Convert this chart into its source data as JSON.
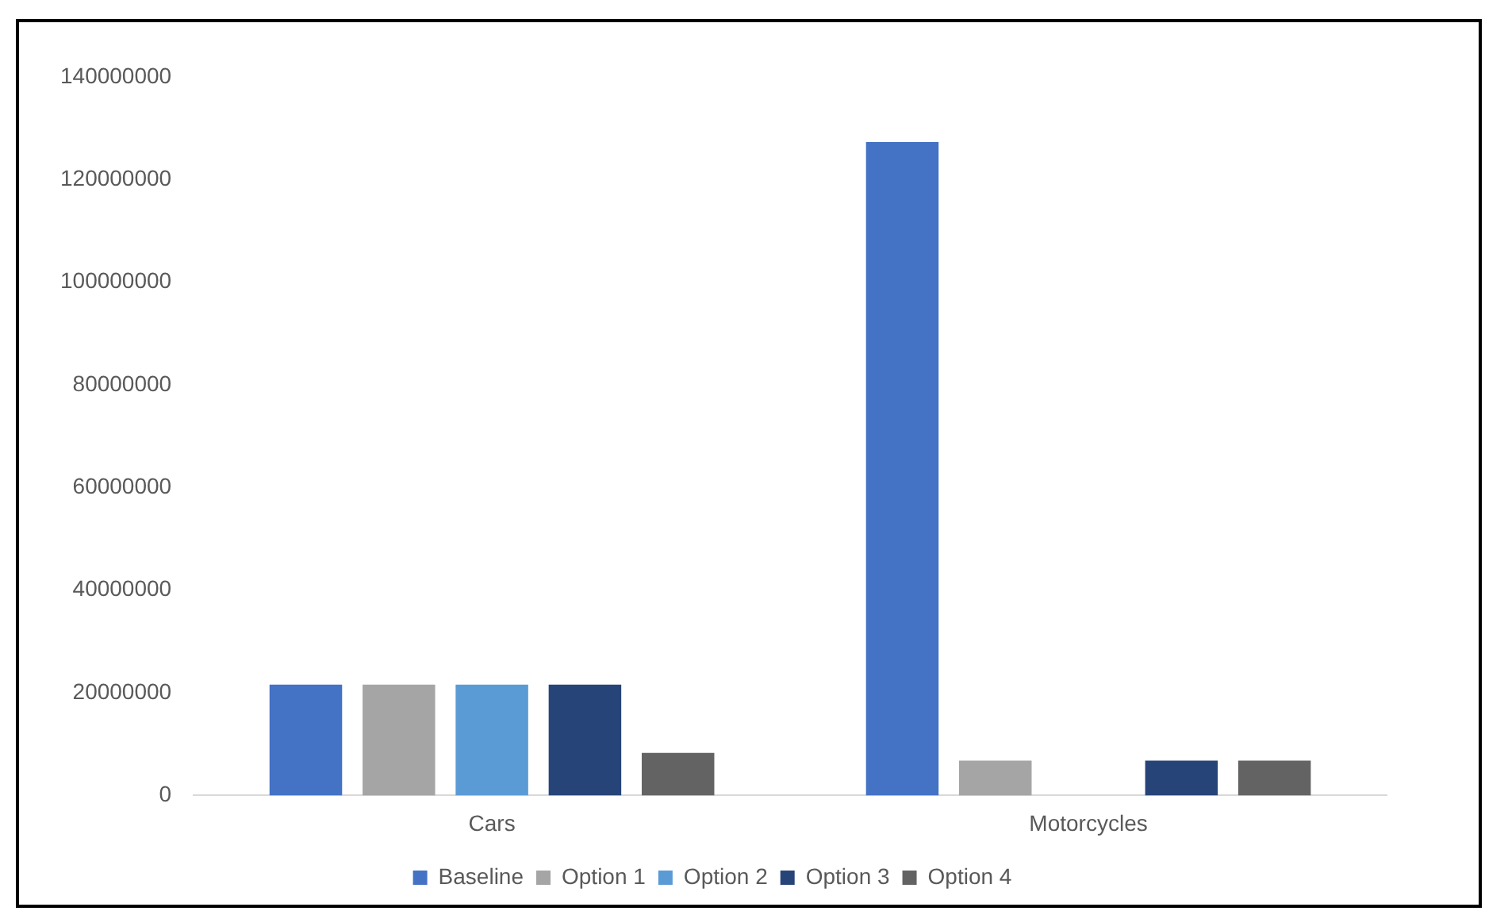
{
  "chart_data": {
    "type": "bar",
    "categories": [
      "Cars",
      "Motorcycles"
    ],
    "series": [
      {
        "name": "Baseline",
        "color": "#4472c4",
        "values": [
          21600000,
          127300000
        ]
      },
      {
        "name": "Option 1",
        "color": "#a5a5a5",
        "values": [
          21600000,
          6800000
        ]
      },
      {
        "name": "Option 2",
        "color": "#5b9bd5",
        "values": [
          21600000,
          null
        ]
      },
      {
        "name": "Option 3",
        "color": "#264478",
        "values": [
          21600000,
          6800000
        ]
      },
      {
        "name": "Option 4",
        "color": "#636363",
        "values": [
          8300000,
          6800000
        ]
      }
    ],
    "ylim": [
      0,
      140000000
    ],
    "yticks": [
      0,
      20000000,
      40000000,
      60000000,
      80000000,
      100000000,
      120000000,
      140000000
    ],
    "grid": false,
    "legend": "bottom"
  }
}
